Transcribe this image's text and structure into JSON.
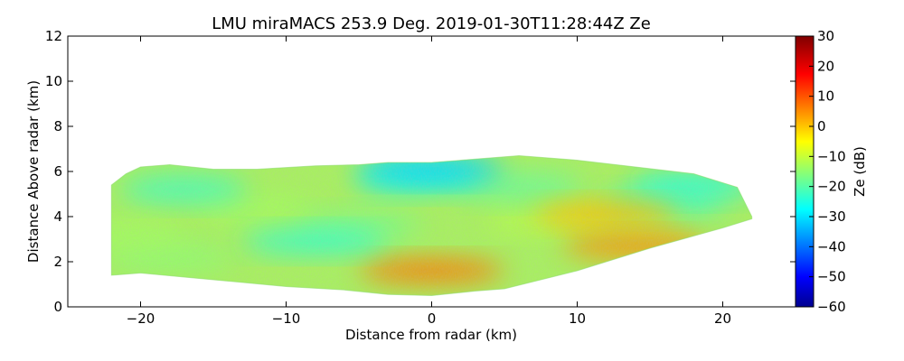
{
  "chart_data": {
    "type": "heatmap",
    "title": "LMU miraMACS 253.9 Deg. 2019-01-30T11:28:44Z  Ze",
    "xlabel": "Distance from radar (km)",
    "ylabel": "Distance Above radar  (km)",
    "xlim": [
      -25,
      25
    ],
    "ylim": [
      0,
      12
    ],
    "x_ticks": [
      -20,
      -10,
      0,
      10,
      20
    ],
    "x_tick_labels": [
      "−20",
      "−10",
      "0",
      "10",
      "20"
    ],
    "y_ticks": [
      0,
      2,
      4,
      6,
      8,
      10,
      12
    ],
    "y_tick_labels": [
      "0",
      "2",
      "4",
      "6",
      "8",
      "10",
      "12"
    ],
    "colorbar": {
      "label": "Ze (dB)",
      "range": [
        -60,
        30
      ],
      "ticks": [
        -60,
        -50,
        -40,
        -30,
        -20,
        -10,
        0,
        10,
        20,
        30
      ],
      "tick_labels": [
        "−60",
        "−50",
        "−40",
        "−30",
        "−20",
        "−10",
        "0",
        "10",
        "20",
        "30"
      ],
      "colormap": "jet"
    },
    "field": {
      "description_units": "km",
      "echo_top_km": [
        [
          -22,
          5.4
        ],
        [
          -21,
          5.9
        ],
        [
          -20,
          6.2
        ],
        [
          -18,
          6.3
        ],
        [
          -15,
          6.1
        ],
        [
          -12,
          6.1
        ],
        [
          -8,
          6.25
        ],
        [
          -5,
          6.3
        ],
        [
          -3,
          6.4
        ],
        [
          0,
          6.4
        ],
        [
          3,
          6.55
        ],
        [
          6,
          6.7
        ],
        [
          10,
          6.5
        ],
        [
          14,
          6.2
        ],
        [
          18,
          5.9
        ],
        [
          21,
          5.3
        ],
        [
          22,
          4.0
        ]
      ],
      "echo_base_km": [
        [
          -22,
          1.4
        ],
        [
          -20,
          1.5
        ],
        [
          -15,
          1.2
        ],
        [
          -10,
          0.9
        ],
        [
          -6,
          0.75
        ],
        [
          -3,
          0.55
        ],
        [
          0,
          0.5
        ],
        [
          3,
          0.7
        ],
        [
          5,
          0.8
        ],
        [
          10,
          1.6
        ],
        [
          15,
          2.6
        ],
        [
          20,
          3.5
        ],
        [
          22,
          3.9
        ]
      ],
      "features": [
        {
          "name": "enhanced reflectivity core",
          "x_km": 0,
          "y_km": 1.6,
          "ze_db": 8
        },
        {
          "name": "enhanced layer",
          "x_km": 14,
          "y_km": 2.7,
          "ze_db": 6
        },
        {
          "name": "enhanced layer",
          "x_km": 12,
          "y_km": 4.1,
          "ze_db": 2
        },
        {
          "name": "weak layer",
          "x_km": -8,
          "y_km": 2.9,
          "ze_db": -22
        },
        {
          "name": "weak cloud top",
          "x_km": 0,
          "y_km": 6.1,
          "ze_db": -30
        }
      ]
    }
  }
}
